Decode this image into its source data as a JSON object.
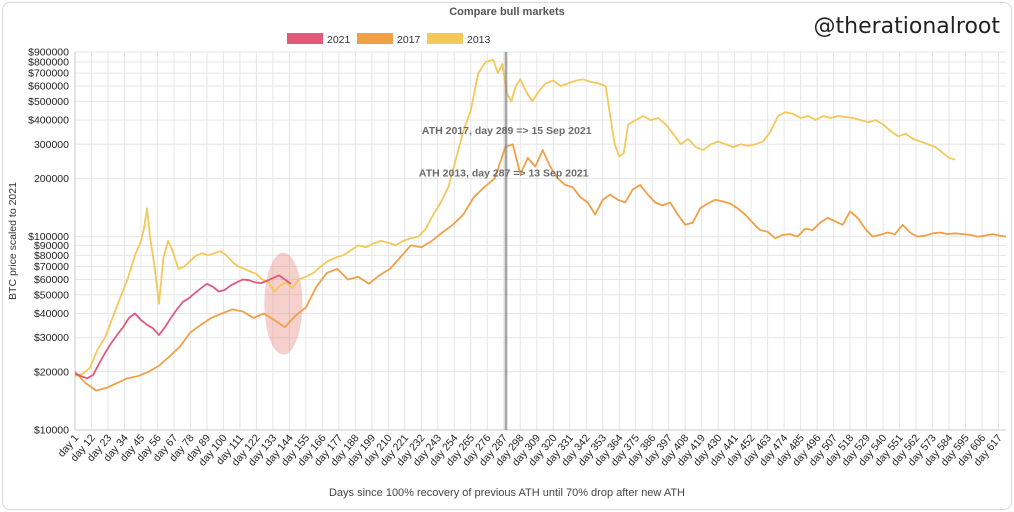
{
  "watermark": "@therationalroot",
  "chart_data": {
    "type": "line",
    "title": "Compare bull markets",
    "xlabel": "Days since 100% recovery of previous ATH until 70% drop after new ATH",
    "ylabel": "BTC price scaled to 2021",
    "yscale": "log",
    "ylim": [
      10000,
      900000
    ],
    "xlim": [
      1,
      622
    ],
    "grid": true,
    "legend_position": "top-center",
    "y_ticks": [
      {
        "value": 900000,
        "label": "$900000"
      },
      {
        "value": 800000,
        "label": "$800000"
      },
      {
        "value": 700000,
        "label": "$700000"
      },
      {
        "value": 600000,
        "label": "$600000"
      },
      {
        "value": 500000,
        "label": "$500000"
      },
      {
        "value": 400000,
        "label": "$400000"
      },
      {
        "value": 300000,
        "label": "300000"
      },
      {
        "value": 200000,
        "label": "200000"
      },
      {
        "value": 100000,
        "label": "$100000"
      },
      {
        "value": 90000,
        "label": "$90000"
      },
      {
        "value": 80000,
        "label": "$80000"
      },
      {
        "value": 70000,
        "label": "$70000"
      },
      {
        "value": 60000,
        "label": "$60000"
      },
      {
        "value": 50000,
        "label": "$50000"
      },
      {
        "value": 40000,
        "label": "$40000"
      },
      {
        "value": 30000,
        "label": "$30000"
      },
      {
        "value": 20000,
        "label": "$20000"
      },
      {
        "value": 10000,
        "label": "$10000"
      }
    ],
    "x_ticks": [
      {
        "value": 1,
        "label": "day 1"
      },
      {
        "value": 12,
        "label": "day 12"
      },
      {
        "value": 23,
        "label": "day 23"
      },
      {
        "value": 34,
        "label": "day 34"
      },
      {
        "value": 45,
        "label": "day 45"
      },
      {
        "value": 56,
        "label": "day 56"
      },
      {
        "value": 67,
        "label": "day 67"
      },
      {
        "value": 78,
        "label": "day 78"
      },
      {
        "value": 89,
        "label": "day 89"
      },
      {
        "value": 100,
        "label": "day 100"
      },
      {
        "value": 111,
        "label": "day 111"
      },
      {
        "value": 122,
        "label": "day 122"
      },
      {
        "value": 133,
        "label": "day 133"
      },
      {
        "value": 144,
        "label": "day 144"
      },
      {
        "value": 155,
        "label": "day 155"
      },
      {
        "value": 166,
        "label": "day 166"
      },
      {
        "value": 177,
        "label": "day 177"
      },
      {
        "value": 188,
        "label": "day 188"
      },
      {
        "value": 199,
        "label": "day 199"
      },
      {
        "value": 210,
        "label": "day 210"
      },
      {
        "value": 221,
        "label": "day 221"
      },
      {
        "value": 232,
        "label": "day 232"
      },
      {
        "value": 243,
        "label": "day 243"
      },
      {
        "value": 254,
        "label": "day 254"
      },
      {
        "value": 265,
        "label": "day 265"
      },
      {
        "value": 276,
        "label": "day 276"
      },
      {
        "value": 287,
        "label": "day 287"
      },
      {
        "value": 298,
        "label": "day 298"
      },
      {
        "value": 309,
        "label": "day 309"
      },
      {
        "value": 320,
        "label": "day 320"
      },
      {
        "value": 331,
        "label": "day 331"
      },
      {
        "value": 342,
        "label": "day 342"
      },
      {
        "value": 353,
        "label": "day 353"
      },
      {
        "value": 364,
        "label": "day 364"
      },
      {
        "value": 375,
        "label": "day 375"
      },
      {
        "value": 386,
        "label": "day 386"
      },
      {
        "value": 397,
        "label": "day 397"
      },
      {
        "value": 408,
        "label": "day 408"
      },
      {
        "value": 419,
        "label": "day 419"
      },
      {
        "value": 430,
        "label": "day 430"
      },
      {
        "value": 441,
        "label": "day 441"
      },
      {
        "value": 452,
        "label": "day 452"
      },
      {
        "value": 463,
        "label": "day 463"
      },
      {
        "value": 474,
        "label": "day 474"
      },
      {
        "value": 485,
        "label": "day 485"
      },
      {
        "value": 496,
        "label": "day 496"
      },
      {
        "value": 507,
        "label": "day 507"
      },
      {
        "value": 518,
        "label": "day 518"
      },
      {
        "value": 529,
        "label": "day 529"
      },
      {
        "value": 540,
        "label": "day 540"
      },
      {
        "value": 551,
        "label": "day 551"
      },
      {
        "value": 562,
        "label": "day 562"
      },
      {
        "value": 573,
        "label": "day 573"
      },
      {
        "value": 584,
        "label": "day 584"
      },
      {
        "value": 595,
        "label": "day 595"
      },
      {
        "value": 606,
        "label": "day 606"
      },
      {
        "value": 617,
        "label": "day 617"
      }
    ],
    "series": [
      {
        "name": "2021",
        "color": "#e05a7a",
        "x": [
          1,
          5,
          9,
          13,
          17,
          21,
          25,
          29,
          33,
          37,
          41,
          45,
          49,
          53,
          57,
          61,
          65,
          69,
          73,
          77,
          81,
          85,
          89,
          93,
          97,
          101,
          105,
          109,
          113,
          117,
          121,
          125,
          129,
          133,
          137,
          141,
          145
        ],
        "y": [
          19500,
          19000,
          18500,
          19200,
          22000,
          25000,
          28000,
          31000,
          34000,
          38000,
          40000,
          37000,
          35000,
          33500,
          31000,
          34000,
          38000,
          42000,
          46000,
          48000,
          51000,
          54000,
          57000,
          55000,
          52000,
          53000,
          56000,
          58000,
          60000,
          59500,
          58000,
          57500,
          59000,
          61000,
          63000,
          60000,
          57000
        ]
      },
      {
        "name": "2017",
        "color": "#f0a048",
        "x": [
          1,
          8,
          15,
          22,
          29,
          36,
          43,
          50,
          57,
          64,
          71,
          78,
          85,
          92,
          99,
          106,
          113,
          120,
          127,
          134,
          141,
          148,
          155,
          162,
          169,
          176,
          183,
          190,
          197,
          204,
          211,
          218,
          225,
          232,
          239,
          246,
          253,
          260,
          267,
          274,
          281,
          288,
          293,
          298,
          303,
          308,
          313,
          318,
          323,
          328,
          333,
          338,
          343,
          348,
          353,
          358,
          363,
          368,
          373,
          378,
          383,
          388,
          393,
          398,
          403,
          408,
          413,
          418,
          423,
          428,
          433,
          438,
          443,
          448,
          453,
          458,
          463,
          468,
          473,
          478,
          483,
          488,
          493,
          498,
          503,
          508,
          513,
          518,
          523,
          528,
          533,
          538,
          543,
          548,
          553,
          558,
          563,
          568,
          573,
          578,
          583,
          588,
          593,
          598,
          603,
          608,
          613,
          618,
          622
        ],
        "y": [
          20000,
          17500,
          16000,
          16500,
          17500,
          18500,
          19000,
          20000,
          21500,
          24000,
          27000,
          32000,
          35000,
          38000,
          40000,
          42000,
          41000,
          38000,
          40000,
          37000,
          34000,
          39000,
          43000,
          55000,
          65000,
          68000,
          60000,
          62000,
          57000,
          63000,
          68000,
          78000,
          90000,
          88000,
          95000,
          105000,
          115000,
          130000,
          160000,
          180000,
          200000,
          290000,
          300000,
          210000,
          255000,
          230000,
          280000,
          230000,
          200000,
          185000,
          180000,
          160000,
          150000,
          130000,
          155000,
          165000,
          155000,
          150000,
          175000,
          185000,
          165000,
          150000,
          145000,
          150000,
          130000,
          115000,
          118000,
          140000,
          148000,
          155000,
          152000,
          148000,
          140000,
          130000,
          118000,
          108000,
          106000,
          98000,
          102000,
          103000,
          100000,
          110000,
          108000,
          118000,
          125000,
          120000,
          115000,
          135000,
          125000,
          110000,
          100000,
          102000,
          105000,
          103000,
          115000,
          105000,
          100000,
          101000,
          104000,
          105000,
          103000,
          104000,
          103000,
          102000,
          100000,
          101000,
          103000,
          101000,
          100000
        ]
      },
      {
        "name": "2013",
        "color": "#f4c85a",
        "x": [
          1,
          6,
          11,
          16,
          21,
          26,
          31,
          36,
          41,
          45,
          47,
          49,
          51,
          54,
          57,
          60,
          63,
          66,
          70,
          74,
          78,
          82,
          86,
          90,
          94,
          98,
          102,
          106,
          110,
          114,
          118,
          122,
          126,
          130,
          134,
          138,
          142,
          146,
          150,
          155,
          160,
          165,
          170,
          175,
          180,
          185,
          190,
          195,
          200,
          205,
          210,
          215,
          220,
          225,
          230,
          235,
          240,
          245,
          250,
          255,
          260,
          265,
          270,
          275,
          280,
          283,
          286,
          289,
          292,
          295,
          298,
          302,
          306,
          310,
          315,
          320,
          325,
          330,
          335,
          340,
          345,
          350,
          355,
          358,
          361,
          364,
          367,
          370,
          375,
          380,
          385,
          390,
          395,
          400,
          405,
          410,
          415,
          420,
          425,
          430,
          435,
          440,
          445,
          450,
          455,
          460,
          465,
          470,
          475,
          480,
          485,
          490,
          495,
          500,
          505,
          510,
          515,
          520,
          525,
          530,
          535,
          540,
          545,
          550,
          555,
          560,
          565,
          570,
          575,
          580,
          584,
          588
        ],
        "y": [
          19000,
          19500,
          21000,
          26000,
          30000,
          38000,
          48000,
          60000,
          80000,
          95000,
          110000,
          140000,
          100000,
          70000,
          45000,
          78000,
          95000,
          85000,
          68000,
          70000,
          75000,
          80000,
          82000,
          80000,
          82000,
          84000,
          80000,
          74000,
          70000,
          68000,
          66000,
          64000,
          60000,
          58000,
          52000,
          56000,
          58000,
          54000,
          60000,
          62000,
          65000,
          70000,
          75000,
          78000,
          80000,
          85000,
          90000,
          88000,
          92000,
          95000,
          93000,
          90000,
          95000,
          98000,
          100000,
          110000,
          130000,
          150000,
          180000,
          250000,
          350000,
          450000,
          700000,
          800000,
          820000,
          700000,
          780000,
          550000,
          500000,
          600000,
          650000,
          560000,
          500000,
          560000,
          620000,
          640000,
          600000,
          620000,
          640000,
          650000,
          630000,
          620000,
          600000,
          420000,
          300000,
          260000,
          270000,
          380000,
          400000,
          420000,
          400000,
          410000,
          380000,
          340000,
          300000,
          320000,
          290000,
          280000,
          300000,
          310000,
          300000,
          290000,
          300000,
          295000,
          300000,
          310000,
          350000,
          420000,
          440000,
          430000,
          410000,
          420000,
          400000,
          420000,
          410000,
          420000,
          415000,
          410000,
          400000,
          390000,
          400000,
          380000,
          350000,
          330000,
          340000,
          320000,
          310000,
          300000,
          290000,
          270000,
          255000,
          250000
        ]
      }
    ],
    "annotations": [
      {
        "text": "ATH 2017, day 289 => 15 Sep 2021",
        "x": 289,
        "y": 340000
      },
      {
        "text": "ATH 2013, day 287 => 13 Sep 2021",
        "x": 287,
        "y": 205000
      }
    ],
    "vertical_lines": [
      288,
      289
    ],
    "highlight_ellipse": {
      "x": 140,
      "y": 45000
    }
  }
}
